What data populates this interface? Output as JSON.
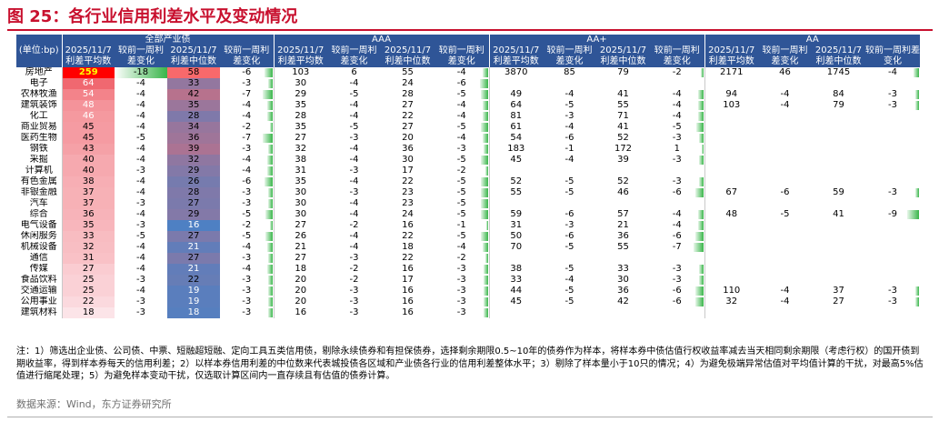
{
  "title": "图 25：各行业信用利差水平及变动情况",
  "table": {
    "unit_label": "(单位:bp)",
    "groups": [
      "全部产业债",
      "AAA",
      "AA+",
      "AA"
    ],
    "subheaders": [
      "2025/11/7 利差平均数",
      "较前一周利差变化",
      "2025/11/7 利差中位数",
      "较前一周利差变化"
    ],
    "rows": [
      {
        "name": "房地产",
        "v": [
          [
            259,
            -18,
            58,
            -6
          ],
          [
            103,
            6,
            55,
            -4
          ],
          [
            3870,
            85,
            79,
            -2
          ],
          [
            2171,
            46,
            1745,
            -4
          ]
        ]
      },
      {
        "name": "电子",
        "v": [
          [
            64,
            -4,
            33,
            -3
          ],
          [
            30,
            -4,
            24,
            -6
          ],
          [
            null,
            null,
            null,
            null
          ],
          [
            null,
            null,
            null,
            null
          ]
        ]
      },
      {
        "name": "农林牧渔",
        "v": [
          [
            54,
            -4,
            42,
            -7
          ],
          [
            29,
            -5,
            28,
            -5
          ],
          [
            49,
            -4,
            41,
            -4
          ],
          [
            94,
            -4,
            84,
            -3
          ]
        ]
      },
      {
        "name": "建筑装饰",
        "v": [
          [
            48,
            -4,
            35,
            -4
          ],
          [
            35,
            -4,
            27,
            -4
          ],
          [
            64,
            -5,
            55,
            -4
          ],
          [
            103,
            -4,
            79,
            -3
          ]
        ]
      },
      {
        "name": "化工",
        "v": [
          [
            46,
            -4,
            28,
            -4
          ],
          [
            28,
            -4,
            22,
            -4
          ],
          [
            81,
            -3,
            71,
            -4
          ],
          [
            null,
            null,
            null,
            null
          ]
        ]
      },
      {
        "name": "商业贸易",
        "v": [
          [
            45,
            -4,
            34,
            -2
          ],
          [
            35,
            -5,
            27,
            -5
          ],
          [
            61,
            -4,
            41,
            -5
          ],
          [
            null,
            null,
            null,
            null
          ]
        ]
      },
      {
        "name": "医药生物",
        "v": [
          [
            45,
            -5,
            36,
            -7
          ],
          [
            27,
            -3,
            20,
            -4
          ],
          [
            54,
            -6,
            52,
            -3
          ],
          [
            null,
            null,
            null,
            null
          ]
        ]
      },
      {
        "name": "钢铁",
        "v": [
          [
            43,
            -4,
            39,
            -3
          ],
          [
            32,
            -4,
            36,
            -3
          ],
          [
            183,
            -1,
            172,
            1
          ],
          [
            null,
            null,
            null,
            null
          ]
        ]
      },
      {
        "name": "采掘",
        "v": [
          [
            40,
            -4,
            32,
            -4
          ],
          [
            38,
            -4,
            30,
            -5
          ],
          [
            45,
            -4,
            39,
            -3
          ],
          [
            null,
            null,
            null,
            null
          ]
        ]
      },
      {
        "name": "计算机",
        "v": [
          [
            40,
            -3,
            29,
            -4
          ],
          [
            31,
            -3,
            17,
            -2
          ],
          [
            null,
            null,
            null,
            null
          ],
          [
            null,
            null,
            null,
            null
          ]
        ]
      },
      {
        "name": "有色金属",
        "v": [
          [
            38,
            -4,
            26,
            -6
          ],
          [
            35,
            -4,
            22,
            -5
          ],
          [
            52,
            -5,
            52,
            -3
          ],
          [
            null,
            null,
            null,
            null
          ]
        ]
      },
      {
        "name": "非银金融",
        "v": [
          [
            37,
            -4,
            28,
            -3
          ],
          [
            30,
            -3,
            23,
            -5
          ],
          [
            55,
            -5,
            46,
            -6
          ],
          [
            67,
            -6,
            59,
            -3
          ]
        ]
      },
      {
        "name": "汽车",
        "v": [
          [
            37,
            -3,
            27,
            -3
          ],
          [
            30,
            -4,
            23,
            -5
          ],
          [
            null,
            null,
            null,
            null
          ],
          [
            null,
            null,
            null,
            null
          ]
        ]
      },
      {
        "name": "综合",
        "v": [
          [
            36,
            -4,
            29,
            -5
          ],
          [
            30,
            -4,
            24,
            -5
          ],
          [
            59,
            -6,
            57,
            -4
          ],
          [
            48,
            -5,
            41,
            -9
          ]
        ]
      },
      {
        "name": "电气设备",
        "v": [
          [
            35,
            -3,
            16,
            -2
          ],
          [
            27,
            -2,
            16,
            -1
          ],
          [
            31,
            -3,
            21,
            -4
          ],
          [
            null,
            null,
            null,
            null
          ]
        ]
      },
      {
        "name": "休闲服务",
        "v": [
          [
            33,
            -5,
            27,
            -5
          ],
          [
            26,
            -4,
            22,
            -5
          ],
          [
            50,
            -6,
            36,
            -6
          ],
          [
            null,
            null,
            null,
            null
          ]
        ]
      },
      {
        "name": "机械设备",
        "v": [
          [
            32,
            -4,
            21,
            -4
          ],
          [
            21,
            -4,
            18,
            -4
          ],
          [
            70,
            -5,
            55,
            -7
          ],
          [
            null,
            null,
            null,
            null
          ]
        ]
      },
      {
        "name": "通信",
        "v": [
          [
            31,
            -4,
            27,
            -3
          ],
          [
            27,
            -3,
            22,
            -2
          ],
          [
            null,
            null,
            null,
            null
          ],
          [
            null,
            null,
            null,
            null
          ]
        ]
      },
      {
        "name": "传媒",
        "v": [
          [
            27,
            -4,
            21,
            -4
          ],
          [
            18,
            -2,
            16,
            -3
          ],
          [
            38,
            -5,
            33,
            -3
          ],
          [
            null,
            null,
            null,
            null
          ]
        ]
      },
      {
        "name": "食品饮料",
        "v": [
          [
            25,
            -3,
            22,
            -3
          ],
          [
            20,
            -2,
            17,
            -3
          ],
          [
            33,
            -4,
            30,
            -3
          ],
          [
            null,
            null,
            null,
            null
          ]
        ]
      },
      {
        "name": "交通运输",
        "v": [
          [
            25,
            -4,
            19,
            -3
          ],
          [
            20,
            -3,
            16,
            -3
          ],
          [
            44,
            -5,
            36,
            -6
          ],
          [
            110,
            -4,
            37,
            -3
          ]
        ]
      },
      {
        "name": "公用事业",
        "v": [
          [
            22,
            -3,
            19,
            -3
          ],
          [
            20,
            -3,
            16,
            -3
          ],
          [
            45,
            -5,
            42,
            -6
          ],
          [
            32,
            -4,
            27,
            -3
          ]
        ]
      },
      {
        "name": "建筑材料",
        "v": [
          [
            18,
            -3,
            18,
            -3
          ],
          [
            16,
            -3,
            16,
            -3
          ],
          [
            null,
            null,
            null,
            null
          ],
          [
            null,
            null,
            null,
            null
          ]
        ]
      }
    ]
  },
  "notes": "注：1）筛选出企业债、公司债、中票、短融超短融、定向工具五类信用债，剔除永续债券和有担保债券，选择剩余期限0.5~10年的债券作为样本，将样本券中债估值行权收益率减去当天相同剩余期限（考虑行权）的国开债到期收益率，得到样本券每天的信用利差；2）以样本券信用利差的中位数来代表城投债各区域和产业债各行业的信用利差整体水平；3）剔除了样本量小于10只的情况；4）为避免极端异常估值对平均值计算的干扰，对最高5%估值进行缩尾处理；5）为避免样本变动干扰，仅选取计算区间内一直存续且有估值的债券计算。",
  "source": "数据来源：Wind，东方证券研究所"
}
